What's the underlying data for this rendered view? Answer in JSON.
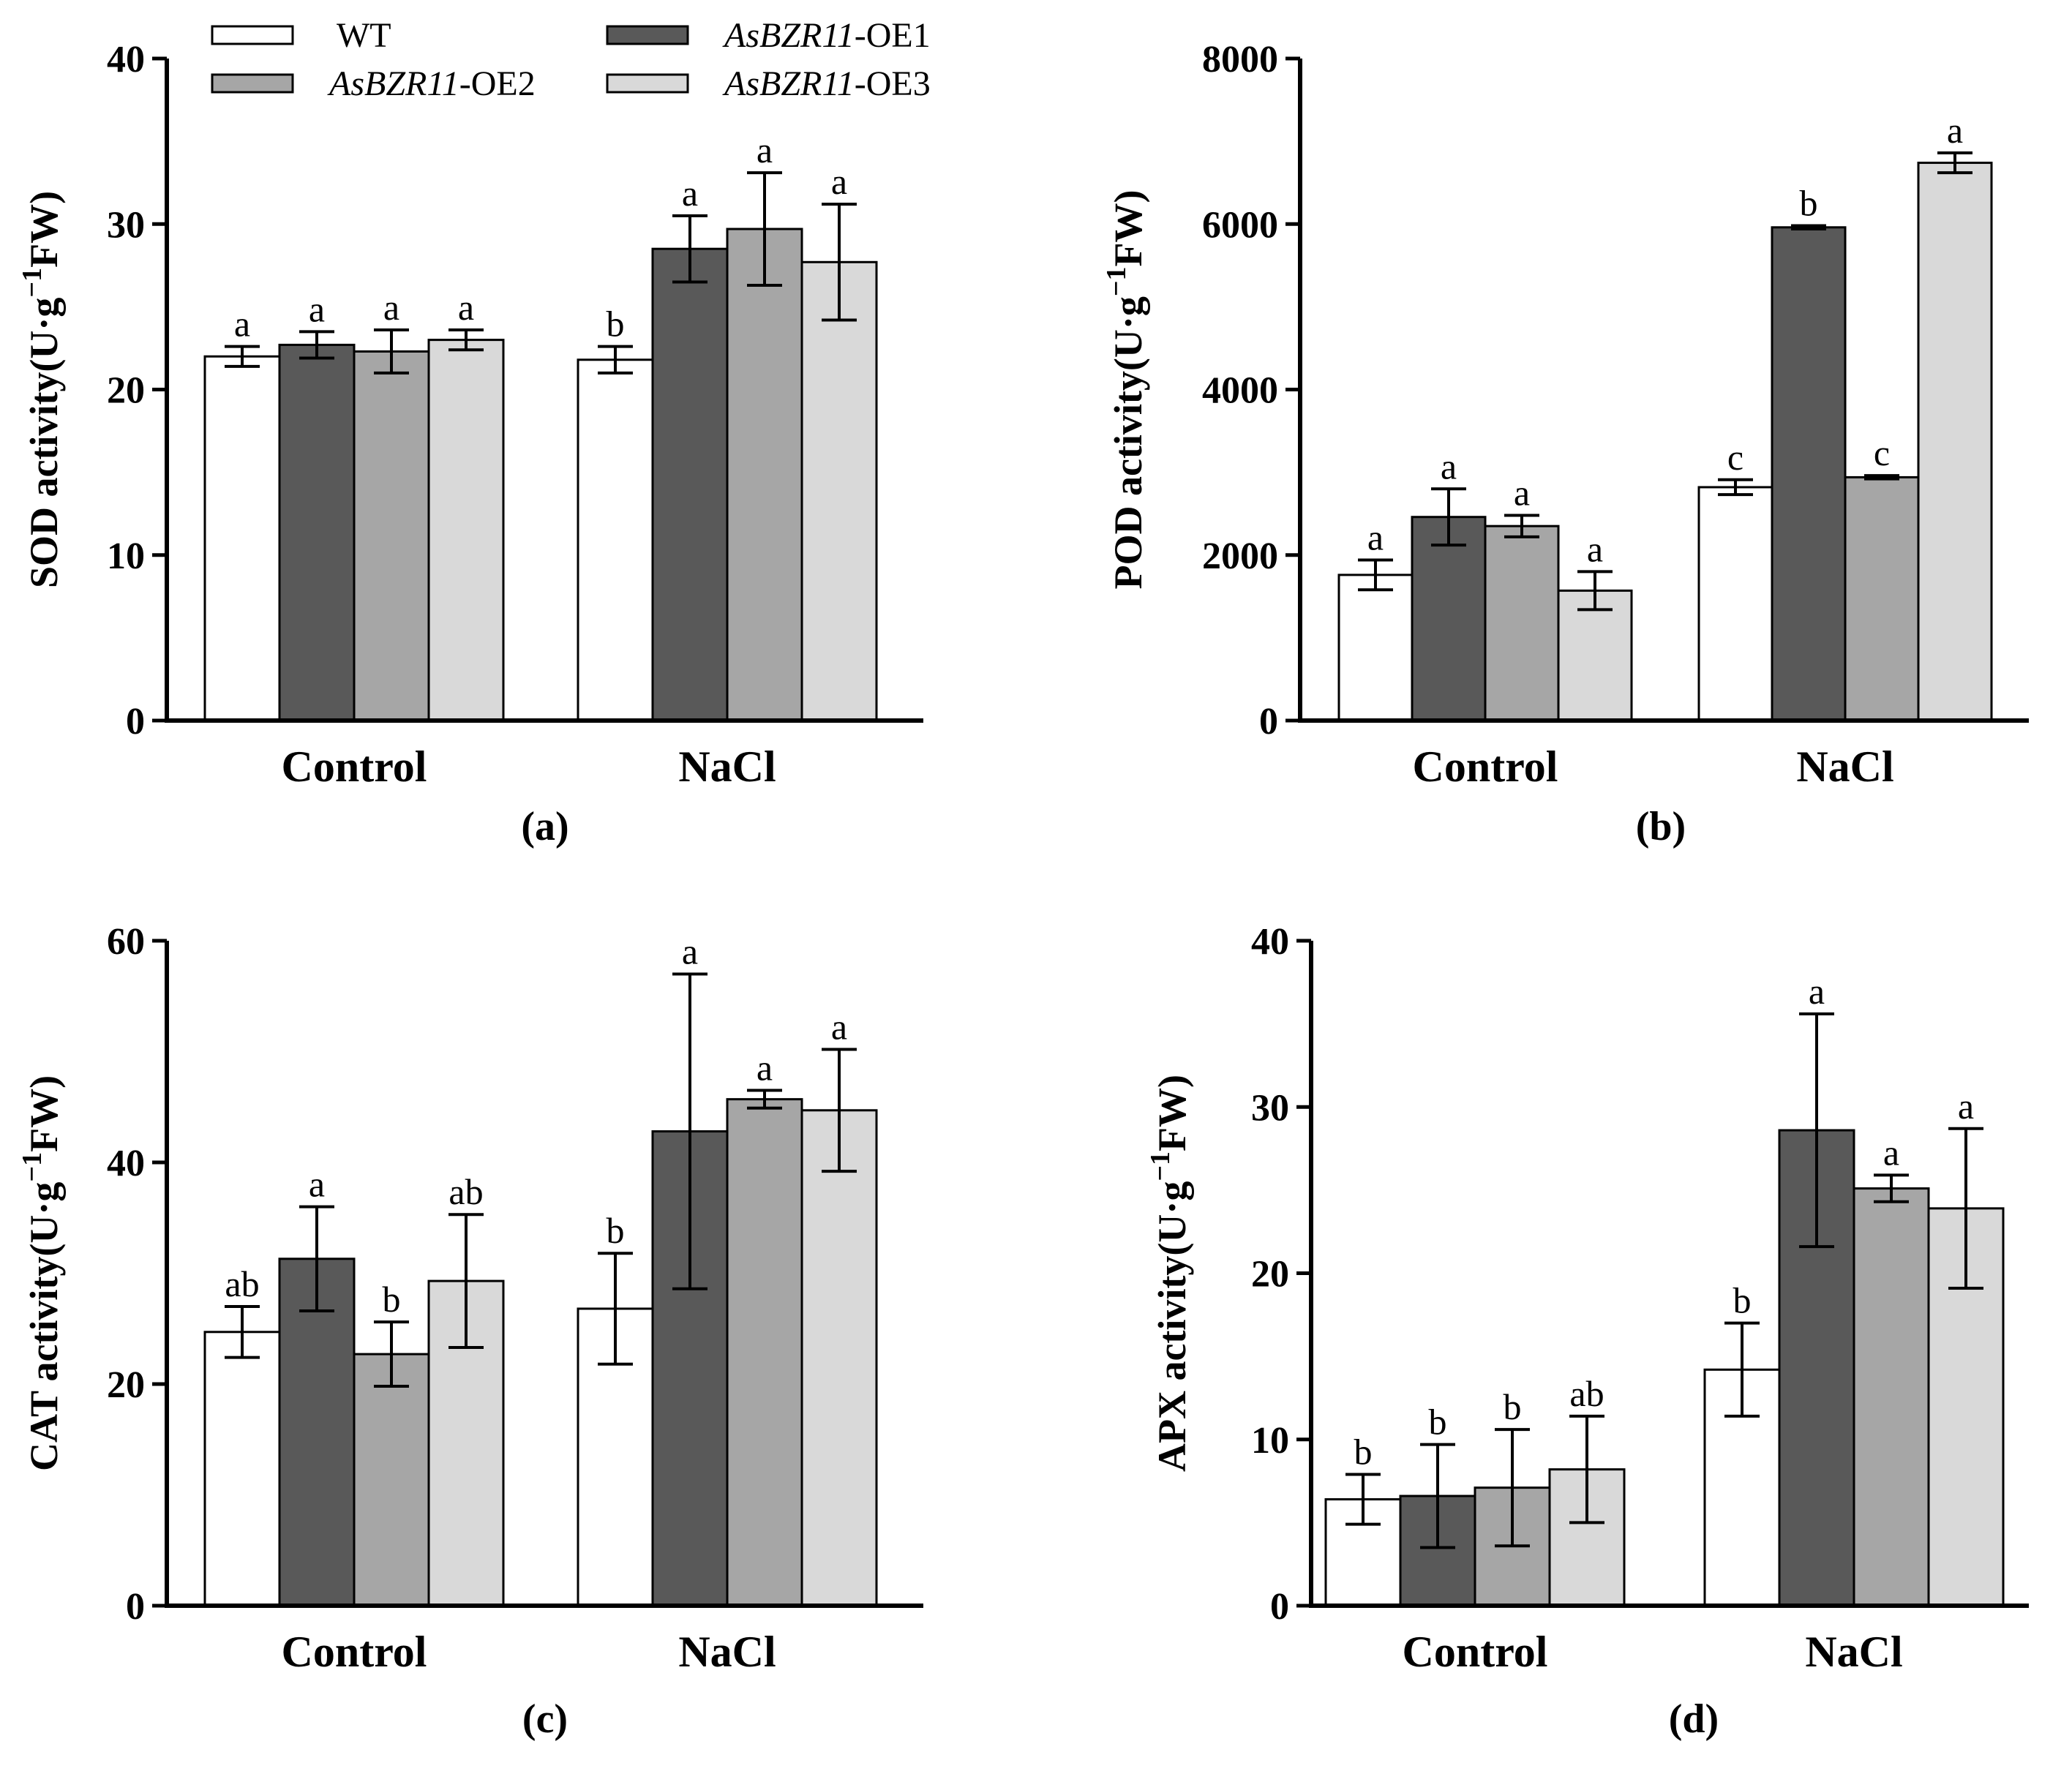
{
  "legend": {
    "entries": [
      {
        "italic": "",
        "rest": "WT",
        "color": "#ffffff"
      },
      {
        "italic": "AsBZR11",
        "rest": "-OE1",
        "color": "#595959"
      },
      {
        "italic": "AsBZR11",
        "rest": "-OE2",
        "color": "#a6a6a6"
      },
      {
        "italic": "AsBZR11",
        "rest": "-OE3",
        "color": "#d9d9d9"
      }
    ]
  },
  "chart_data": [
    {
      "type": "bar",
      "panel_label": "(a)",
      "ylabel": {
        "main": "SOD activity(U·g",
        "sup": "−1",
        "tail": "FW)"
      },
      "categories": [
        "Control",
        "NaCl"
      ],
      "ylim": [
        0,
        40
      ],
      "yticks": [
        "0",
        "10",
        "20",
        "30",
        "40"
      ],
      "series": [
        {
          "name": "WT",
          "color": "#ffffff",
          "values": [
            22.0,
            21.8
          ],
          "errors": [
            0.6,
            0.8
          ],
          "sig": [
            "a",
            "b"
          ]
        },
        {
          "name": "AsBZR11-OE1",
          "color": "#595959",
          "values": [
            22.7,
            28.5
          ],
          "errors": [
            0.8,
            2.0
          ],
          "sig": [
            "a",
            "a"
          ]
        },
        {
          "name": "AsBZR11-OE2",
          "color": "#a6a6a6",
          "values": [
            22.3,
            29.7
          ],
          "errors": [
            1.3,
            3.4
          ],
          "sig": [
            "a",
            "a"
          ]
        },
        {
          "name": "AsBZR11-OE3",
          "color": "#d9d9d9",
          "values": [
            23.0,
            27.7
          ],
          "errors": [
            0.6,
            3.5
          ],
          "sig": [
            "a",
            "a"
          ]
        }
      ]
    },
    {
      "type": "bar",
      "panel_label": "(b)",
      "ylabel": {
        "main": "POD activity(U·g",
        "sup": "−1",
        "tail": "FW)"
      },
      "categories": [
        "Control",
        "NaCl"
      ],
      "ylim": [
        0,
        8000
      ],
      "yticks": [
        "0",
        "2000",
        "4000",
        "6000",
        "8000"
      ],
      "series": [
        {
          "name": "WT",
          "color": "#ffffff",
          "values": [
            1760,
            2820
          ],
          "errors": [
            180,
            90
          ],
          "sig": [
            "a",
            "c"
          ]
        },
        {
          "name": "AsBZR11-OE1",
          "color": "#595959",
          "values": [
            2460,
            5960
          ],
          "errors": [
            340,
            20
          ],
          "sig": [
            "a",
            "b"
          ]
        },
        {
          "name": "AsBZR11-OE2",
          "color": "#a6a6a6",
          "values": [
            2350,
            2940
          ],
          "errors": [
            130,
            20
          ],
          "sig": [
            "a",
            "c"
          ]
        },
        {
          "name": "AsBZR11-OE3",
          "color": "#d9d9d9",
          "values": [
            1570,
            6740
          ],
          "errors": [
            230,
            120
          ],
          "sig": [
            "a",
            "a"
          ]
        }
      ]
    },
    {
      "type": "bar",
      "panel_label": "(c)",
      "ylabel": {
        "main": "CAT activity(U·g",
        "sup": "−1",
        "tail": "FW)"
      },
      "categories": [
        "Control",
        "NaCl"
      ],
      "ylim": [
        0,
        60
      ],
      "yticks": [
        "0",
        "20",
        "40",
        "60"
      ],
      "series": [
        {
          "name": "WT",
          "color": "#ffffff",
          "values": [
            24.7,
            26.8
          ],
          "errors": [
            2.3,
            5.0
          ],
          "sig": [
            "ab",
            "b"
          ]
        },
        {
          "name": "AsBZR11-OE1",
          "color": "#595959",
          "values": [
            31.3,
            42.8
          ],
          "errors": [
            4.7,
            14.2
          ],
          "sig": [
            "a",
            "a"
          ]
        },
        {
          "name": "AsBZR11-OE2",
          "color": "#a6a6a6",
          "values": [
            22.7,
            45.7
          ],
          "errors": [
            2.9,
            0.8
          ],
          "sig": [
            "b",
            "a"
          ]
        },
        {
          "name": "AsBZR11-OE3",
          "color": "#d9d9d9",
          "values": [
            29.3,
            44.7
          ],
          "errors": [
            6.0,
            5.5
          ],
          "sig": [
            "ab",
            "a"
          ]
        }
      ]
    },
    {
      "type": "bar",
      "panel_label": "(d)",
      "ylabel": {
        "main": "APX activity(U·g",
        "sup": "−1",
        "tail": "FW)"
      },
      "categories": [
        "Control",
        "NaCl"
      ],
      "ylim": [
        0,
        40
      ],
      "yticks": [
        "0",
        "10",
        "20",
        "30",
        "40"
      ],
      "series": [
        {
          "name": "WT",
          "color": "#ffffff",
          "values": [
            6.4,
            14.2
          ],
          "errors": [
            1.5,
            2.8
          ],
          "sig": [
            "b",
            "b"
          ]
        },
        {
          "name": "AsBZR11-OE1",
          "color": "#595959",
          "values": [
            6.6,
            28.6
          ],
          "errors": [
            3.1,
            7.0
          ],
          "sig": [
            "b",
            "a"
          ]
        },
        {
          "name": "AsBZR11-OE2",
          "color": "#a6a6a6",
          "values": [
            7.1,
            25.1
          ],
          "errors": [
            3.5,
            0.8
          ],
          "sig": [
            "b",
            "a"
          ]
        },
        {
          "name": "AsBZR11-OE3",
          "color": "#d9d9d9",
          "values": [
            8.2,
            23.9
          ],
          "errors": [
            3.2,
            4.8
          ],
          "sig": [
            "ab",
            "a"
          ]
        }
      ]
    }
  ]
}
